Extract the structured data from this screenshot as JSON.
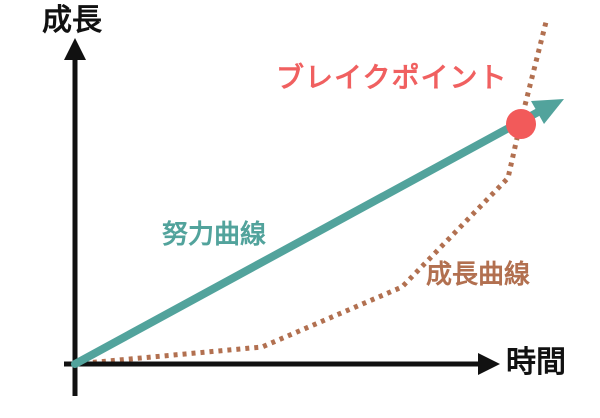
{
  "axes": {
    "y_label": "成長",
    "x_label": "時間",
    "color": "#111111"
  },
  "effort_curve": {
    "label": "努力曲線",
    "color": "#52a39c",
    "line_style": "solid",
    "arrow": true
  },
  "growth_curve": {
    "label": "成長曲線",
    "color": "#b27050",
    "line_style": "dotted"
  },
  "break_point": {
    "label": "ブレイクポイント",
    "color": "#f06060",
    "marker_color": "#f25a5a"
  }
}
